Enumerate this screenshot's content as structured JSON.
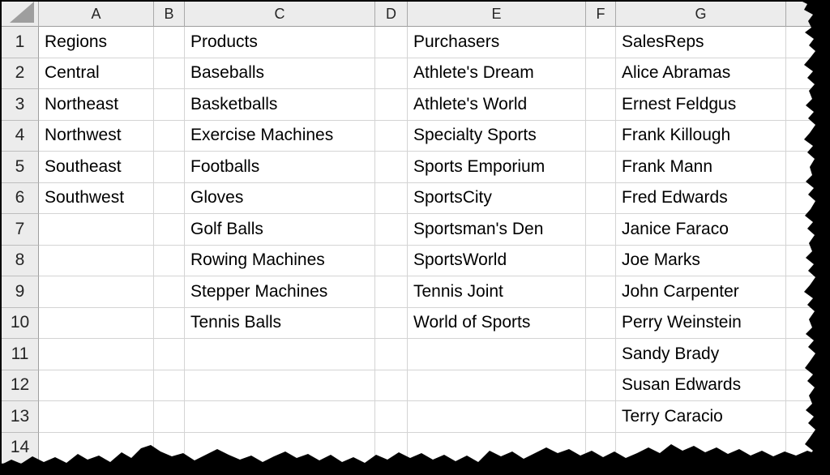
{
  "spreadsheet": {
    "column_letters": [
      "A",
      "B",
      "C",
      "D",
      "E",
      "F",
      "G"
    ],
    "visible_row_count": 14,
    "cells": {
      "A": [
        "Regions",
        "Central",
        "Northeast",
        "Northwest",
        "Southeast",
        "Southwest"
      ],
      "B": [],
      "C": [
        "Products",
        "Baseballs",
        "Basketballs",
        "Exercise Machines",
        "Footballs",
        "Gloves",
        "Golf Balls",
        "Rowing Machines",
        "Stepper Machines",
        "Tennis Balls"
      ],
      "D": [],
      "E": [
        "Purchasers",
        "Athlete's Dream",
        "Athlete's World",
        "Specialty Sports",
        "Sports Emporium",
        "SportsCity",
        "Sportsman's Den",
        "SportsWorld",
        "Tennis Joint",
        "World of Sports"
      ],
      "F": [],
      "G": [
        "SalesReps",
        "Alice Abramas",
        "Ernest Feldgus",
        "Frank Killough",
        "Frank Mann",
        "Fred Edwards",
        "Janice Faraco",
        "Joe Marks",
        "John Carpenter",
        "Perry Weinstein",
        "Sandy Brady",
        "Susan Edwards",
        "Terry Caracio"
      ]
    },
    "colors": {
      "cell_text": "#000000",
      "header_background": "#ececec",
      "gridline": "#d4d4d4",
      "header_border": "#9e9e9e",
      "select_all_triangle": "#9e9e9e",
      "torn_edge": "#000000"
    }
  }
}
